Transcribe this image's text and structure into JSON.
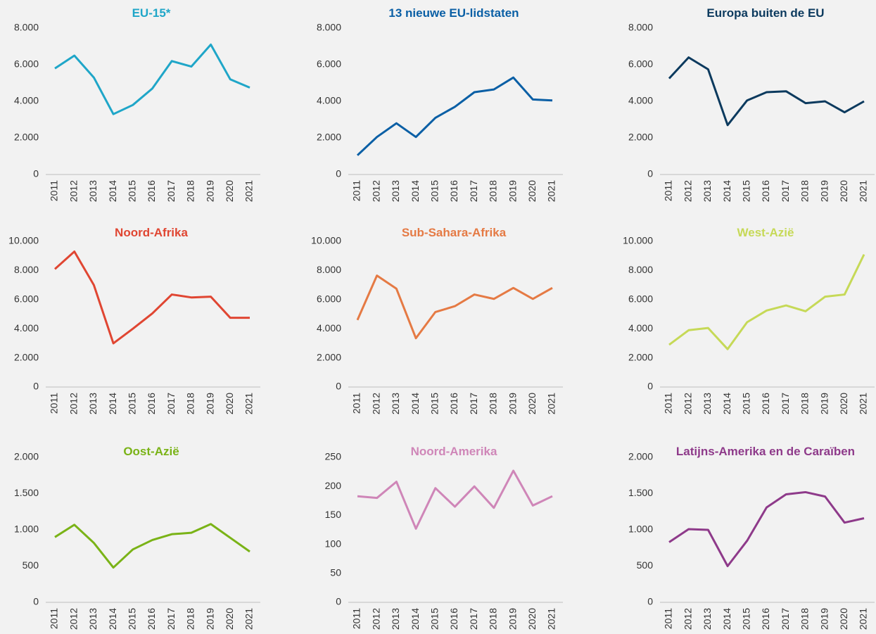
{
  "chart_data": [
    {
      "type": "line",
      "title": "EU-15*",
      "categories": [
        "2011",
        "2012",
        "2013",
        "2014",
        "2015",
        "2016",
        "2017",
        "2018",
        "2019",
        "2020",
        "2021"
      ],
      "series": [
        {
          "color": "#1fa6c8",
          "values": [
            5800,
            6500,
            5300,
            3300,
            3800,
            4700,
            6200,
            5900,
            7100,
            5200,
            4750
          ]
        }
      ],
      "ylim": [
        0,
        8000
      ],
      "yticks": [
        0,
        {
          "value": 2000,
          "label": "2.000"
        },
        {
          "value": 4000,
          "label": "4.000"
        },
        {
          "value": 6000,
          "label": "6.000"
        },
        {
          "value": 8000,
          "label": "8.000"
        }
      ],
      "grid": false
    },
    {
      "type": "line",
      "title": "13 nieuwe EU-lidstaten",
      "categories": [
        "2011",
        "2012",
        "2013",
        "2014",
        "2015",
        "2016",
        "2017",
        "2018",
        "2019",
        "2020",
        "2021"
      ],
      "series": [
        {
          "color": "#0a5fa5",
          "values": [
            1050,
            2050,
            2800,
            2050,
            3100,
            3700,
            4500,
            4650,
            5300,
            4100,
            4050
          ]
        }
      ],
      "ylim": [
        0,
        8000
      ],
      "yticks": [
        0,
        {
          "value": 2000,
          "label": "2.000"
        },
        {
          "value": 4000,
          "label": "4.000"
        },
        {
          "value": 6000,
          "label": "6.000"
        },
        {
          "value": 8000,
          "label": "8.000"
        }
      ],
      "grid": false
    },
    {
      "type": "line",
      "title": "Europa buiten de EU",
      "categories": [
        "2011",
        "2012",
        "2013",
        "2014",
        "2015",
        "2016",
        "2017",
        "2018",
        "2019",
        "2020",
        "2021"
      ],
      "series": [
        {
          "color": "#0c3a5e",
          "values": [
            5250,
            6400,
            5750,
            2700,
            4050,
            4500,
            4550,
            3900,
            4000,
            3400,
            4000
          ]
        }
      ],
      "ylim": [
        0,
        8000
      ],
      "yticks": [
        0,
        {
          "value": 2000,
          "label": "2.000"
        },
        {
          "value": 4000,
          "label": "4.000"
        },
        {
          "value": 6000,
          "label": "6.000"
        },
        {
          "value": 8000,
          "label": "8.000"
        }
      ],
      "grid": false
    },
    {
      "type": "line",
      "title": "Noord-Afrika",
      "categories": [
        "2011",
        "2012",
        "2013",
        "2014",
        "2015",
        "2016",
        "2017",
        "2018",
        "2019",
        "2020",
        "2021"
      ],
      "series": [
        {
          "color": "#e04632",
          "values": [
            8100,
            9300,
            7000,
            3000,
            4000,
            5050,
            6350,
            6150,
            6200,
            4750,
            4750
          ]
        }
      ],
      "ylim": [
        0,
        10000
      ],
      "yticks": [
        0,
        {
          "value": 2000,
          "label": "2.000"
        },
        {
          "value": 4000,
          "label": "4.000"
        },
        {
          "value": 6000,
          "label": "6.000"
        },
        {
          "value": 8000,
          "label": "8.000"
        },
        {
          "value": 10000,
          "label": "10.000"
        }
      ],
      "grid": false
    },
    {
      "type": "line",
      "title": "Sub-Sahara-Afrika",
      "categories": [
        "2011",
        "2012",
        "2013",
        "2014",
        "2015",
        "2016",
        "2017",
        "2018",
        "2019",
        "2020",
        "2021"
      ],
      "series": [
        {
          "color": "#e57a44",
          "values": [
            4600,
            7650,
            6750,
            3350,
            5150,
            5550,
            6350,
            6050,
            6800,
            6050,
            6800
          ]
        }
      ],
      "ylim": [
        0,
        10000
      ],
      "yticks": [
        0,
        {
          "value": 2000,
          "label": "2.000"
        },
        {
          "value": 4000,
          "label": "4.000"
        },
        {
          "value": 6000,
          "label": "6.000"
        },
        {
          "value": 8000,
          "label": "8.000"
        },
        {
          "value": 10000,
          "label": "10.000"
        }
      ],
      "grid": false
    },
    {
      "type": "line",
      "title": "West-Azië",
      "categories": [
        "2011",
        "2012",
        "2013",
        "2014",
        "2015",
        "2016",
        "2017",
        "2018",
        "2019",
        "2020",
        "2021"
      ],
      "series": [
        {
          "color": "#c6d957",
          "values": [
            2900,
            3900,
            4050,
            2600,
            4450,
            5250,
            5600,
            5200,
            6200,
            6350,
            9100
          ]
        }
      ],
      "ylim": [
        0,
        10000
      ],
      "yticks": [
        0,
        {
          "value": 2000,
          "label": "2.000"
        },
        {
          "value": 4000,
          "label": "4.000"
        },
        {
          "value": 6000,
          "label": "6.000"
        },
        {
          "value": 8000,
          "label": "8.000"
        },
        {
          "value": 10000,
          "label": "10.000"
        }
      ],
      "grid": false
    },
    {
      "type": "line",
      "title": "Oost-Azië",
      "categories": [
        "2011",
        "2012",
        "2013",
        "2014",
        "2015",
        "2016",
        "2017",
        "2018",
        "2019",
        "2020",
        "2021"
      ],
      "series": [
        {
          "color": "#7ab317",
          "values": [
            900,
            1070,
            820,
            480,
            730,
            860,
            940,
            960,
            1080,
            890,
            700
          ]
        }
      ],
      "ylim": [
        0,
        2000
      ],
      "yticks": [
        0,
        500,
        {
          "value": 1000,
          "label": "1.000"
        },
        {
          "value": 1500,
          "label": "1.500"
        },
        {
          "value": 2000,
          "label": "2.000"
        }
      ],
      "grid": false
    },
    {
      "type": "line",
      "title": "Noord-Amerika",
      "categories": [
        "2011",
        "2012",
        "2013",
        "2014",
        "2015",
        "2016",
        "2017",
        "2018",
        "2019",
        "2020",
        "2021"
      ],
      "series": [
        {
          "color": "#cf86b8",
          "values": [
            183,
            180,
            208,
            127,
            197,
            165,
            200,
            163,
            227,
            167,
            183
          ]
        }
      ],
      "ylim": [
        0,
        250
      ],
      "yticks": [
        0,
        50,
        100,
        150,
        200,
        250
      ],
      "grid": false
    },
    {
      "type": "line",
      "title": "Latijns-Amerika en de Caraïben",
      "categories": [
        "2011",
        "2012",
        "2013",
        "2014",
        "2015",
        "2016",
        "2017",
        "2018",
        "2019",
        "2020",
        "2021"
      ],
      "series": [
        {
          "color": "#8e3a8a",
          "values": [
            830,
            1010,
            1000,
            500,
            850,
            1310,
            1490,
            1520,
            1460,
            1100,
            1160
          ]
        }
      ],
      "ylim": [
        0,
        2000
      ],
      "yticks": [
        0,
        500,
        {
          "value": 1000,
          "label": "1.000"
        },
        {
          "value": 1500,
          "label": "1.500"
        },
        {
          "value": 2000,
          "label": "2.000"
        }
      ],
      "grid": false
    }
  ]
}
